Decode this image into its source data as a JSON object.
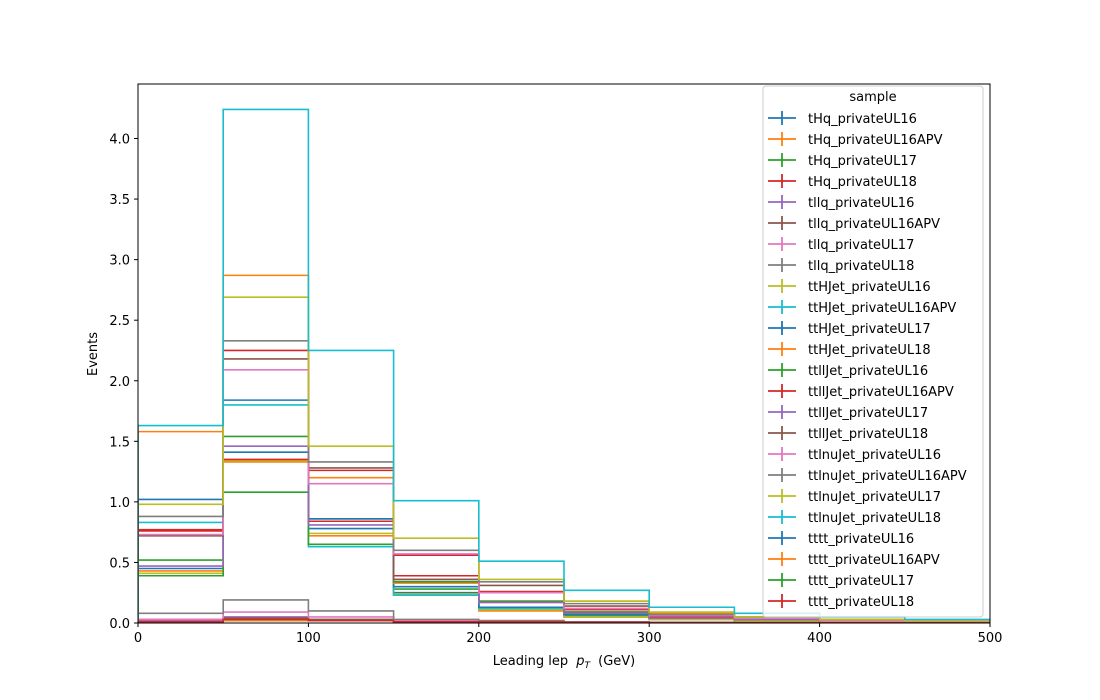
{
  "chart_data": {
    "type": "line",
    "title": "",
    "xlabel": "Leading lep",
    "xlabel_math": "p",
    "xlabel_sub": "T",
    "xlabel_unit": "(GeV)",
    "ylabel": "Events",
    "xlim": [
      0,
      500
    ],
    "ylim": [
      0,
      4.45
    ],
    "x_ticks": [
      "0",
      "100",
      "200",
      "300",
      "400",
      "500"
    ],
    "y_ticks": [
      "0.0",
      "0.5",
      "1.0",
      "1.5",
      "2.0",
      "2.5",
      "3.0",
      "3.5",
      "4.0"
    ],
    "bin_edges": [
      0,
      50,
      100,
      150,
      200,
      250,
      300,
      350,
      400,
      450,
      500
    ],
    "grid": false,
    "legend": {
      "title": "sample",
      "placement": "top-right"
    },
    "series": [
      {
        "name": "tHq_privateUL16",
        "color": "#1f77b4",
        "values": [
          0.45,
          1.41,
          0.78,
          0.25,
          0.11,
          0.05,
          0.03,
          0.02,
          0.01,
          0.01
        ]
      },
      {
        "name": "tHq_privateUL16APV",
        "color": "#ff7f0e",
        "values": [
          0.43,
          1.33,
          0.72,
          0.23,
          0.1,
          0.05,
          0.03,
          0.02,
          0.01,
          0.01
        ]
      },
      {
        "name": "tHq_privateUL17",
        "color": "#2ca02c",
        "values": [
          0.52,
          1.54,
          0.86,
          0.28,
          0.12,
          0.06,
          0.03,
          0.02,
          0.01,
          0.01
        ]
      },
      {
        "name": "tHq_privateUL18",
        "color": "#d62728",
        "values": [
          0.77,
          2.25,
          1.26,
          0.39,
          0.18,
          0.09,
          0.05,
          0.03,
          0.02,
          0.01
        ]
      },
      {
        "name": "tllq_privateUL16",
        "color": "#9467bd",
        "values": [
          0.02,
          0.05,
          0.03,
          0.01,
          0.005,
          0.003,
          0.002,
          0.001,
          0.001,
          0.001
        ]
      },
      {
        "name": "tllq_privateUL16APV",
        "color": "#8c564b",
        "values": [
          0.03,
          0.04,
          0.03,
          0.01,
          0.005,
          0.003,
          0.002,
          0.001,
          0.001,
          0.001
        ]
      },
      {
        "name": "tllq_privateUL17",
        "color": "#e377c2",
        "values": [
          0.03,
          0.09,
          0.05,
          0.02,
          0.01,
          0.005,
          0.003,
          0.002,
          0.001,
          0.001
        ]
      },
      {
        "name": "tllq_privateUL18",
        "color": "#7f7f7f",
        "values": [
          0.08,
          0.19,
          0.1,
          0.03,
          0.02,
          0.01,
          0.005,
          0.003,
          0.002,
          0.001
        ]
      },
      {
        "name": "ttHJet_privateUL16",
        "color": "#bcbd22",
        "values": [
          0.41,
          1.34,
          0.74,
          0.24,
          0.11,
          0.05,
          0.03,
          0.02,
          0.01,
          0.01
        ]
      },
      {
        "name": "ttHJet_privateUL16APV",
        "color": "#17becf",
        "values": [
          0.83,
          1.8,
          0.63,
          0.23,
          0.12,
          0.07,
          0.04,
          0.03,
          0.02,
          0.01
        ]
      },
      {
        "name": "ttHJet_privateUL17",
        "color": "#1f77b4",
        "values": [
          1.02,
          1.84,
          0.86,
          0.3,
          0.13,
          0.07,
          0.04,
          0.03,
          0.02,
          0.01
        ]
      },
      {
        "name": "ttHJet_privateUL18",
        "color": "#ff7f0e",
        "values": [
          1.58,
          2.87,
          1.2,
          0.33,
          0.17,
          0.18,
          0.08,
          0.05,
          0.03,
          0.02
        ]
      },
      {
        "name": "ttllJet_privateUL16",
        "color": "#2ca02c",
        "values": [
          0.39,
          1.08,
          0.65,
          0.34,
          0.18,
          0.09,
          0.05,
          0.03,
          0.02,
          0.01
        ]
      },
      {
        "name": "ttllJet_privateUL16APV",
        "color": "#d62728",
        "values": [
          0.76,
          1.35,
          0.84,
          0.56,
          0.26,
          0.11,
          0.05,
          0.03,
          0.02,
          0.01
        ]
      },
      {
        "name": "ttllJet_privateUL17",
        "color": "#9467bd",
        "values": [
          0.47,
          1.46,
          0.81,
          0.36,
          0.17,
          0.08,
          0.04,
          0.03,
          0.02,
          0.01
        ]
      },
      {
        "name": "ttllJet_privateUL18",
        "color": "#8c564b",
        "values": [
          0.72,
          2.18,
          1.28,
          0.36,
          0.31,
          0.14,
          0.06,
          0.04,
          0.02,
          0.01
        ]
      },
      {
        "name": "ttlnuJet_privateUL16",
        "color": "#e377c2",
        "values": [
          0.73,
          2.09,
          1.15,
          0.57,
          0.25,
          0.12,
          0.06,
          0.04,
          0.02,
          0.01
        ]
      },
      {
        "name": "ttlnuJet_privateUL16APV",
        "color": "#7f7f7f",
        "values": [
          0.88,
          2.33,
          1.33,
          0.6,
          0.34,
          0.16,
          0.07,
          0.05,
          0.03,
          0.02
        ]
      },
      {
        "name": "ttlnuJet_privateUL17",
        "color": "#bcbd22",
        "values": [
          0.98,
          2.69,
          1.46,
          0.7,
          0.36,
          0.18,
          0.09,
          0.05,
          0.03,
          0.02
        ]
      },
      {
        "name": "ttlnuJet_privateUL18",
        "color": "#17becf",
        "values": [
          1.63,
          4.24,
          2.25,
          1.01,
          0.51,
          0.27,
          0.13,
          0.08,
          0.05,
          0.03
        ]
      },
      {
        "name": "tttt_privateUL16",
        "color": "#1f77b4",
        "values": [
          0.01,
          0.02,
          0.02,
          0.01,
          0.01,
          0.005,
          0.004,
          0.003,
          0.002,
          0.001
        ]
      },
      {
        "name": "tttt_privateUL16APV",
        "color": "#ff7f0e",
        "values": [
          0.01,
          0.02,
          0.02,
          0.01,
          0.01,
          0.005,
          0.004,
          0.003,
          0.002,
          0.001
        ]
      },
      {
        "name": "tttt_privateUL17",
        "color": "#2ca02c",
        "values": [
          0.01,
          0.03,
          0.02,
          0.01,
          0.01,
          0.006,
          0.004,
          0.003,
          0.002,
          0.001
        ]
      },
      {
        "name": "tttt_privateUL18",
        "color": "#d62728",
        "values": [
          0.01,
          0.03,
          0.02,
          0.01,
          0.01,
          0.006,
          0.004,
          0.003,
          0.002,
          0.001
        ]
      }
    ]
  }
}
